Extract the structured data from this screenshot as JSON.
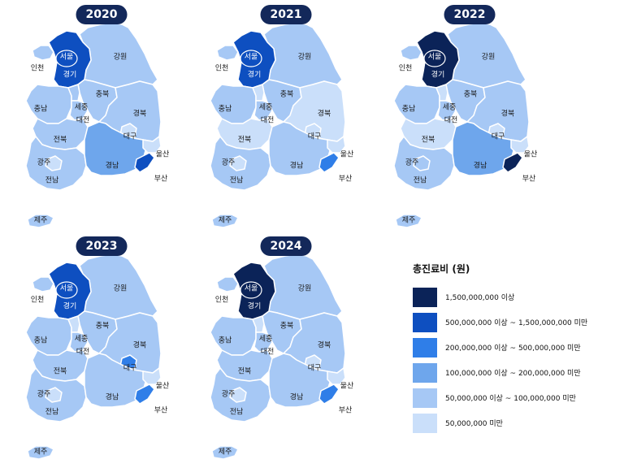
{
  "legend": {
    "title": "총진료비 (원)",
    "classes": [
      {
        "label": "1,500,000,000 이상",
        "color": "#0b2358"
      },
      {
        "label": "500,000,000 이상 ~ 1,500,000,000 미만",
        "color": "#0e4fc0"
      },
      {
        "label": "200,000,000 이상 ~ 500,000,000 미만",
        "color": "#2f7ee8"
      },
      {
        "label": "100,000,000 이상 ~ 200,000,000 미만",
        "color": "#6ea6ec"
      },
      {
        "label": "50,000,000 이상 ~ 100,000,000 미만",
        "color": "#a6c8f5"
      },
      {
        "label": "50,000,000 미만",
        "color": "#cadffa"
      }
    ]
  },
  "region_labels": {
    "seoul": "서울",
    "incheon": "인천",
    "gyeonggi": "경기",
    "gangwon": "강원",
    "chungbuk": "충북",
    "chungnam": "충남",
    "sejong": "세종",
    "daejeon": "대전",
    "gyeongbuk": "경북",
    "daegu": "대구",
    "jeonbuk": "전북",
    "gwangju": "광주",
    "jeonnam": "전남",
    "gyeongnam": "경남",
    "ulsan": "울산",
    "busan": "부산",
    "jeju": "제주"
  },
  "maps": [
    {
      "year": "2020",
      "classes": {
        "seoul": 1,
        "incheon": 4,
        "gyeonggi": 1,
        "gangwon": 4,
        "chungbuk": 4,
        "chungnam": 4,
        "sejong": 4,
        "daejeon": 4,
        "gyeongbuk": 4,
        "daegu": 5,
        "jeonbuk": 4,
        "gwangju": 5,
        "jeonnam": 4,
        "gyeongnam": 3,
        "ulsan": 5,
        "busan": 1,
        "jeju": 4
      }
    },
    {
      "year": "2021",
      "classes": {
        "seoul": 1,
        "incheon": 4,
        "gyeonggi": 1,
        "gangwon": 4,
        "chungbuk": 4,
        "chungnam": 4,
        "sejong": 5,
        "daejeon": 4,
        "gyeongbuk": 5,
        "daegu": 5,
        "jeonbuk": 5,
        "gwangju": 5,
        "jeonnam": 4,
        "gyeongnam": 4,
        "ulsan": 5,
        "busan": 2,
        "jeju": 4
      }
    },
    {
      "year": "2022",
      "classes": {
        "seoul": 0,
        "incheon": 4,
        "gyeonggi": 0,
        "gangwon": 4,
        "chungbuk": 4,
        "chungnam": 4,
        "sejong": 5,
        "daejeon": 4,
        "gyeongbuk": 4,
        "daegu": 5,
        "jeonbuk": 5,
        "gwangju": 4,
        "jeonnam": 4,
        "gyeongnam": 3,
        "ulsan": 5,
        "busan": 0,
        "jeju": 4
      }
    },
    {
      "year": "2023",
      "classes": {
        "seoul": 1,
        "incheon": 4,
        "gyeonggi": 1,
        "gangwon": 4,
        "chungbuk": 4,
        "chungnam": 4,
        "sejong": 5,
        "daejeon": 4,
        "gyeongbuk": 4,
        "daegu": 2,
        "jeonbuk": 4,
        "gwangju": 5,
        "jeonnam": 4,
        "gyeongnam": 4,
        "ulsan": 5,
        "busan": 2,
        "jeju": 4
      }
    },
    {
      "year": "2024",
      "classes": {
        "seoul": 0,
        "incheon": 4,
        "gyeonggi": 0,
        "gangwon": 4,
        "chungbuk": 4,
        "chungnam": 4,
        "sejong": 5,
        "daejeon": 4,
        "gyeongbuk": 4,
        "daegu": 5,
        "jeonbuk": 4,
        "gwangju": 5,
        "jeonnam": 4,
        "gyeongnam": 4,
        "ulsan": 5,
        "busan": 2,
        "jeju": 4
      }
    }
  ]
}
